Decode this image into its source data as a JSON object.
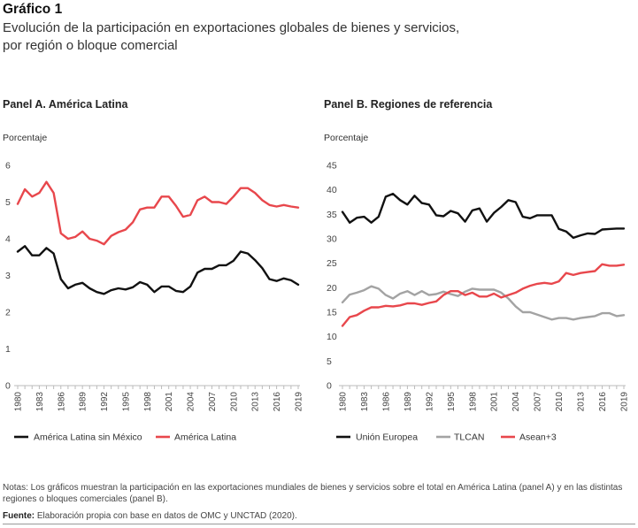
{
  "header": {
    "title": "Gráfico 1",
    "subtitle_line1": "Evolución de la participación en exportaciones globales de bienes y servicios,",
    "subtitle_line2": "por región o bloque comercial"
  },
  "colors": {
    "black": "#111111",
    "red": "#e8474c",
    "gray": "#a3a3a3",
    "axis": "#bbbbbb"
  },
  "chart_data": [
    {
      "type": "line",
      "panel_title": "Panel A. América Latina",
      "ylabel": "Porcentaje",
      "ylim": [
        0,
        6
      ],
      "yticks": [
        "0",
        "1",
        "2",
        "3",
        "4",
        "5",
        "6"
      ],
      "x_tick_labels": [
        "1980",
        "1983",
        "1986",
        "1989",
        "1992",
        "1995",
        "1998",
        "2001",
        "2004",
        "2007",
        "2010",
        "2013",
        "2016",
        "2019"
      ],
      "x": [
        1980,
        1981,
        1982,
        1983,
        1984,
        1985,
        1986,
        1987,
        1988,
        1989,
        1990,
        1991,
        1992,
        1993,
        1994,
        1995,
        1996,
        1997,
        1998,
        1999,
        2000,
        2001,
        2002,
        2003,
        2004,
        2005,
        2006,
        2007,
        2008,
        2009,
        2010,
        2011,
        2012,
        2013,
        2014,
        2015,
        2016,
        2017,
        2018,
        2019
      ],
      "series": [
        {
          "name": "América Latina sin México",
          "color": "#111111",
          "values": [
            3.65,
            3.8,
            3.55,
            3.55,
            3.75,
            3.6,
            2.9,
            2.65,
            2.75,
            2.8,
            2.65,
            2.55,
            2.5,
            2.6,
            2.65,
            2.62,
            2.68,
            2.82,
            2.75,
            2.55,
            2.7,
            2.7,
            2.58,
            2.55,
            2.7,
            3.08,
            3.18,
            3.18,
            3.28,
            3.28,
            3.4,
            3.65,
            3.6,
            3.42,
            3.2,
            2.9,
            2.85,
            2.92,
            2.87,
            2.75
          ]
        },
        {
          "name": "América Latina",
          "color": "#e8474c",
          "values": [
            4.95,
            5.35,
            5.15,
            5.25,
            5.55,
            5.25,
            4.15,
            4.0,
            4.05,
            4.2,
            4.0,
            3.95,
            3.85,
            4.08,
            4.18,
            4.25,
            4.45,
            4.8,
            4.85,
            4.85,
            5.15,
            5.15,
            4.9,
            4.6,
            4.65,
            5.05,
            5.15,
            5.0,
            5.0,
            4.95,
            5.15,
            5.38,
            5.38,
            5.25,
            5.05,
            4.92,
            4.88,
            4.92,
            4.88,
            4.85
          ]
        }
      ]
    },
    {
      "type": "line",
      "panel_title": "Panel B. Regiones de referencia",
      "ylabel": "Porcentaje",
      "ylim": [
        0,
        45
      ],
      "yticks": [
        "0",
        "5",
        "10",
        "15",
        "20",
        "25",
        "30",
        "35",
        "40",
        "45"
      ],
      "x_tick_labels": [
        "1980",
        "1983",
        "1986",
        "1989",
        "1992",
        "1995",
        "1998",
        "2001",
        "2004",
        "2007",
        "2010",
        "2013",
        "2016",
        "2019"
      ],
      "x": [
        1980,
        1981,
        1982,
        1983,
        1984,
        1985,
        1986,
        1987,
        1988,
        1989,
        1990,
        1991,
        1992,
        1993,
        1994,
        1995,
        1996,
        1997,
        1998,
        1999,
        2000,
        2001,
        2002,
        2003,
        2004,
        2005,
        2006,
        2007,
        2008,
        2009,
        2010,
        2011,
        2012,
        2013,
        2014,
        2015,
        2016,
        2017,
        2018,
        2019
      ],
      "series": [
        {
          "name": "Unión Europea",
          "color": "#111111",
          "values": [
            35.5,
            33.3,
            34.3,
            34.5,
            33.3,
            34.5,
            38.6,
            39.2,
            37.9,
            37.0,
            38.8,
            37.3,
            37.0,
            34.8,
            34.6,
            35.7,
            35.2,
            33.5,
            35.8,
            36.2,
            33.5,
            35.3,
            36.5,
            37.9,
            37.5,
            34.5,
            34.2,
            34.8,
            34.8,
            34.8,
            32.0,
            31.5,
            30.2,
            30.7,
            31.1,
            31.0,
            31.9,
            32.0,
            32.1,
            32.1
          ]
        },
        {
          "name": "TLCAN",
          "color": "#a3a3a3",
          "values": [
            17.0,
            18.6,
            19.0,
            19.5,
            20.3,
            19.8,
            18.5,
            17.8,
            18.8,
            19.3,
            18.5,
            19.3,
            18.5,
            18.7,
            19.2,
            18.7,
            18.3,
            19.2,
            19.8,
            19.6,
            19.6,
            19.6,
            19.0,
            17.8,
            16.2,
            15.0,
            15.0,
            14.5,
            14.0,
            13.5,
            13.8,
            13.8,
            13.5,
            13.8,
            14.0,
            14.2,
            14.8,
            14.8,
            14.2,
            14.4
          ]
        },
        {
          "name": "Asean+3",
          "color": "#e8474c",
          "values": [
            12.2,
            14.0,
            14.4,
            15.3,
            16.0,
            16.0,
            16.3,
            16.2,
            16.4,
            16.8,
            16.8,
            16.5,
            16.9,
            17.2,
            18.5,
            19.3,
            19.3,
            18.5,
            19.0,
            18.2,
            18.2,
            18.8,
            18.0,
            18.5,
            19.0,
            19.8,
            20.4,
            20.8,
            21.0,
            20.8,
            21.3,
            23.0,
            22.6,
            23.0,
            23.2,
            23.4,
            24.8,
            24.5,
            24.5,
            24.7
          ]
        }
      ]
    }
  ],
  "footer": {
    "notes": "Notas: Los gráficos muestran la participación en las exportaciones mundiales de bienes y servicios sobre el total en América Latina (panel A) y en las distintas regiones o bloques comerciales (panel B).",
    "source_label": "Fuente:",
    "source_text": " Elaboración propia con base en datos de OMC y UNCTAD (2020)."
  }
}
